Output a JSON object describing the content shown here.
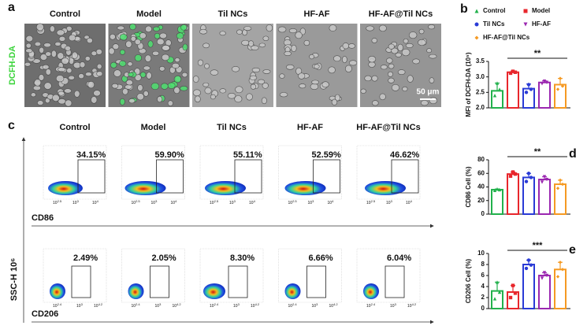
{
  "panel_labels": [
    "a",
    "b",
    "c",
    "d",
    "e"
  ],
  "panel_a": {
    "columns": [
      "Control",
      "Model",
      "Til NCs",
      "HF-AF",
      "HF-AF@Til NCs"
    ],
    "row_label": "DCFH-DA",
    "scale_bar": "50 μm"
  },
  "panel_c": {
    "columns": [
      "Control",
      "Model",
      "Til NCs",
      "HF-AF",
      "HF-AF@Til NCs"
    ],
    "y_label": "SSC-H 10⁶",
    "rows": [
      {
        "marker": "CD86",
        "percentages": [
          "34.15%",
          "59.90%",
          "55.11%",
          "52.59%",
          "46.62%"
        ],
        "ticks": [
          {
            "base": "10",
            "exp": "2.5"
          },
          {
            "base": "10",
            "exp": "3"
          },
          {
            "base": "10",
            "exp": "4"
          }
        ]
      },
      {
        "marker": "CD206",
        "percentages": [
          "2.49%",
          "2.05%",
          "8.30%",
          "6.66%",
          "6.04%"
        ],
        "ticks": [
          {
            "base": "10",
            "exp": "2.4"
          },
          {
            "base": "10",
            "exp": "3"
          },
          {
            "base": "10",
            "exp": "4.2"
          }
        ]
      }
    ]
  },
  "legend": {
    "names": [
      "Control",
      "Model",
      "Til NCs",
      "HF-AF",
      "HF-AF@Til NCs"
    ],
    "colors": [
      "#22b14c",
      "#e8262c",
      "#2a3bd6",
      "#9b27b0",
      "#f59a23"
    ],
    "markers": [
      "triangle",
      "square",
      "circle",
      "triangle-down",
      "diamond"
    ]
  },
  "chart_data": [
    {
      "type": "bar",
      "y_label": "MFI of DCFH-DA (10⁵)",
      "ylim": [
        2.0,
        3.5
      ],
      "yticks": [
        {
          "value": 2,
          "label": "2.0"
        },
        2.5,
        {
          "value": 3,
          "label": "3.0"
        },
        3.5
      ],
      "values": [
        2.55,
        3.15,
        2.62,
        2.82,
        2.75
      ],
      "errors": [
        0.25,
        0.04,
        0.15,
        0.05,
        0.2
      ],
      "points": [
        [
          2.4,
          2.8,
          2.6
        ],
        [
          3.12,
          3.18,
          3.15
        ],
        [
          2.5,
          2.75,
          2.6
        ],
        [
          2.78,
          2.86,
          2.82
        ],
        [
          2.6,
          2.95,
          2.7
        ]
      ],
      "annotation": "**"
    },
    {
      "type": "bar",
      "y_label": "CD86 Cell (%)",
      "ylim": [
        0,
        80
      ],
      "yticks": [
        0,
        20,
        40,
        60,
        80
      ],
      "values": [
        36,
        59,
        54,
        51,
        44
      ],
      "errors": [
        1,
        3,
        6,
        4,
        6
      ],
      "points": [
        [
          35,
          37,
          36
        ],
        [
          56,
          62,
          59
        ],
        [
          48,
          60,
          54
        ],
        [
          47,
          55,
          51
        ],
        [
          38,
          50,
          44
        ]
      ],
      "annotation": "**"
    },
    {
      "type": "bar",
      "y_label": "CD206 Cell (%)",
      "ylim": [
        0,
        10
      ],
      "yticks": [
        0,
        2,
        4,
        6,
        8,
        10
      ],
      "values": [
        3.2,
        3.0,
        8.0,
        6.0,
        7.1
      ],
      "errors": [
        1.6,
        1.2,
        0.8,
        0.5,
        1.3
      ],
      "points": [
        [
          1.8,
          4.8,
          3.0
        ],
        [
          2.0,
          4.2,
          2.8
        ],
        [
          7.3,
          8.8,
          7.9
        ],
        [
          5.5,
          6.5,
          6.0
        ],
        [
          5.8,
          8.4,
          7.1
        ]
      ],
      "annotation": "***"
    }
  ]
}
